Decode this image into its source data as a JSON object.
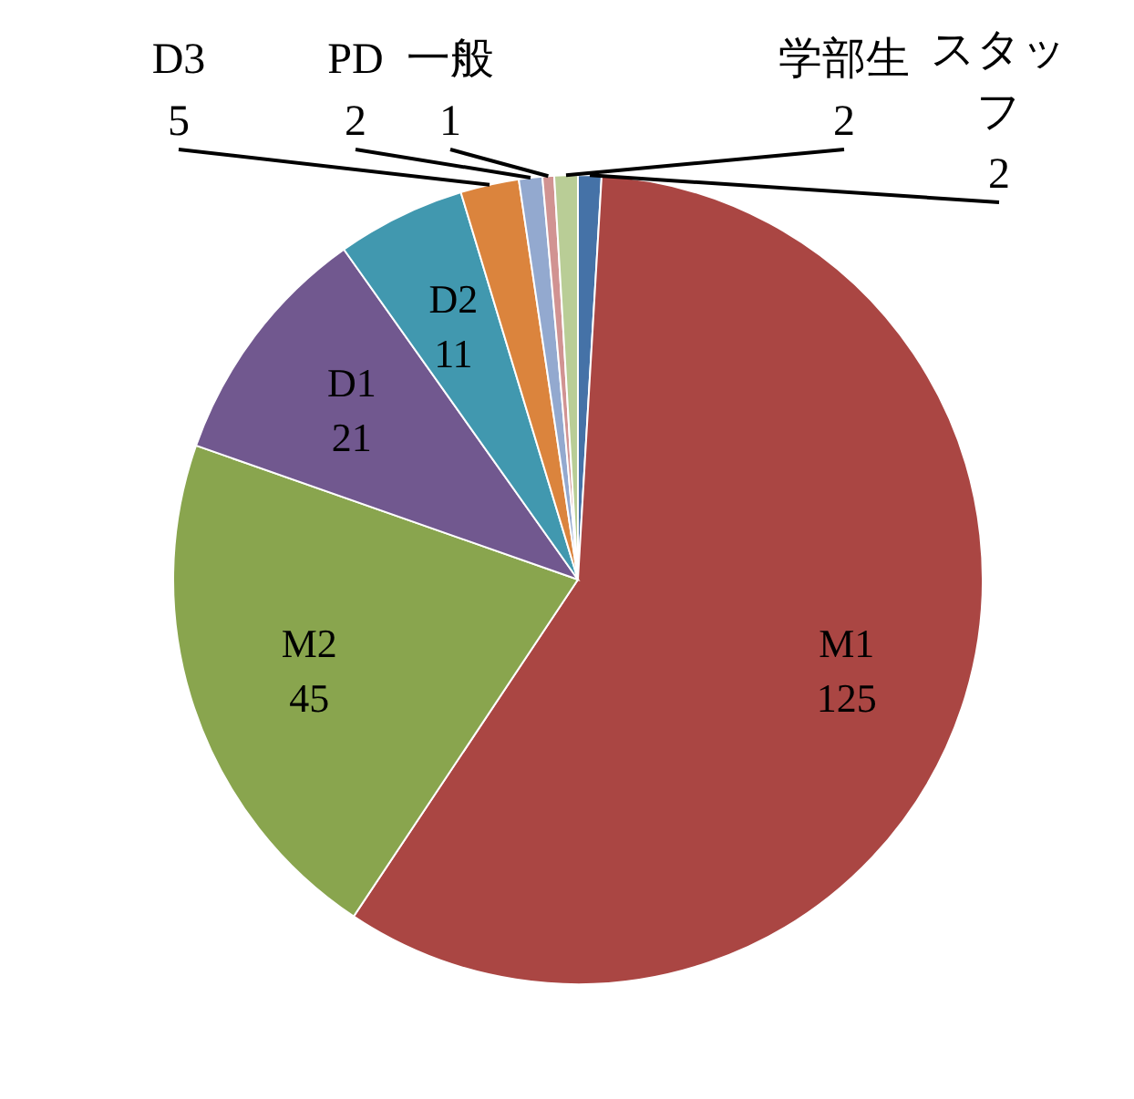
{
  "chart_data": {
    "type": "pie",
    "categories": [
      "スタッフ",
      "M1",
      "M2",
      "D1",
      "D2",
      "D3",
      "PD",
      "一般",
      "学部生"
    ],
    "values": [
      2,
      125,
      45,
      21,
      11,
      5,
      2,
      1,
      2
    ],
    "colors": [
      "#4572a7",
      "#aa4643",
      "#89a54e",
      "#71588f",
      "#4198af",
      "#db843d",
      "#93a9cf",
      "#d19392",
      "#b9cd96"
    ],
    "data_labels": true
  }
}
